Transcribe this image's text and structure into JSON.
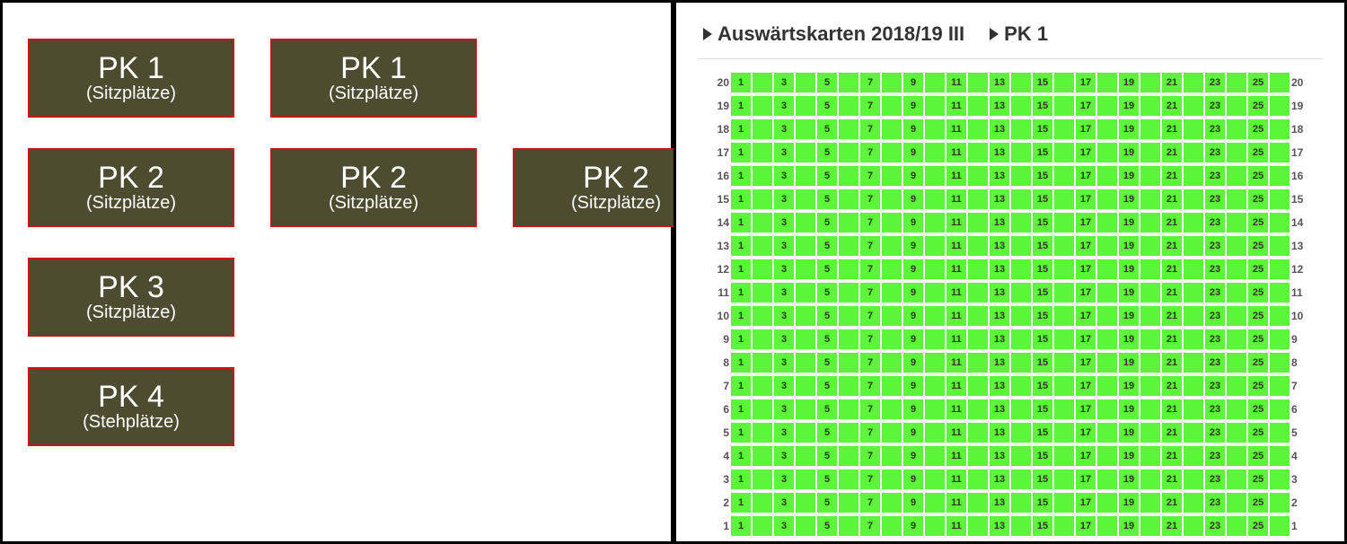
{
  "colors": {
    "category_bg": "#4d4b30",
    "category_border": "#c81414",
    "category_text": "#ffffff",
    "seat_available": "#5df53a",
    "seat_text": "#2a3a1a",
    "row_label": "#555555",
    "divider_border": "#000000",
    "breadcrumb_text": "#333333",
    "rule": "#dddddd"
  },
  "categories": {
    "rows": [
      [
        {
          "title": "PK 1",
          "subtitle": "(Sitzplätze)"
        },
        {
          "title": "PK 1",
          "subtitle": "(Sitzplätze)"
        },
        null
      ],
      [
        {
          "title": "PK 2",
          "subtitle": "(Sitzplätze)"
        },
        {
          "title": "PK 2",
          "subtitle": "(Sitzplätze)"
        },
        {
          "title": "PK 2",
          "subtitle": "(Sitzplätze)"
        }
      ],
      [
        {
          "title": "PK 3",
          "subtitle": "(Sitzplätze)"
        },
        null,
        null
      ],
      [
        {
          "title": "PK 4",
          "subtitle": "(Stehplätze)"
        },
        null,
        null
      ]
    ]
  },
  "breadcrumb": {
    "items": [
      {
        "label": "Auswärtskarten 2018/19 III"
      },
      {
        "label": "PK 1"
      }
    ]
  },
  "seatmap": {
    "rows_from": 20,
    "rows_to": 1,
    "seats_per_row": 26,
    "odd_labels": [
      1,
      3,
      5,
      7,
      9,
      11,
      13,
      15,
      17,
      19,
      21,
      23,
      25
    ],
    "seat_color": "#5df53a"
  }
}
